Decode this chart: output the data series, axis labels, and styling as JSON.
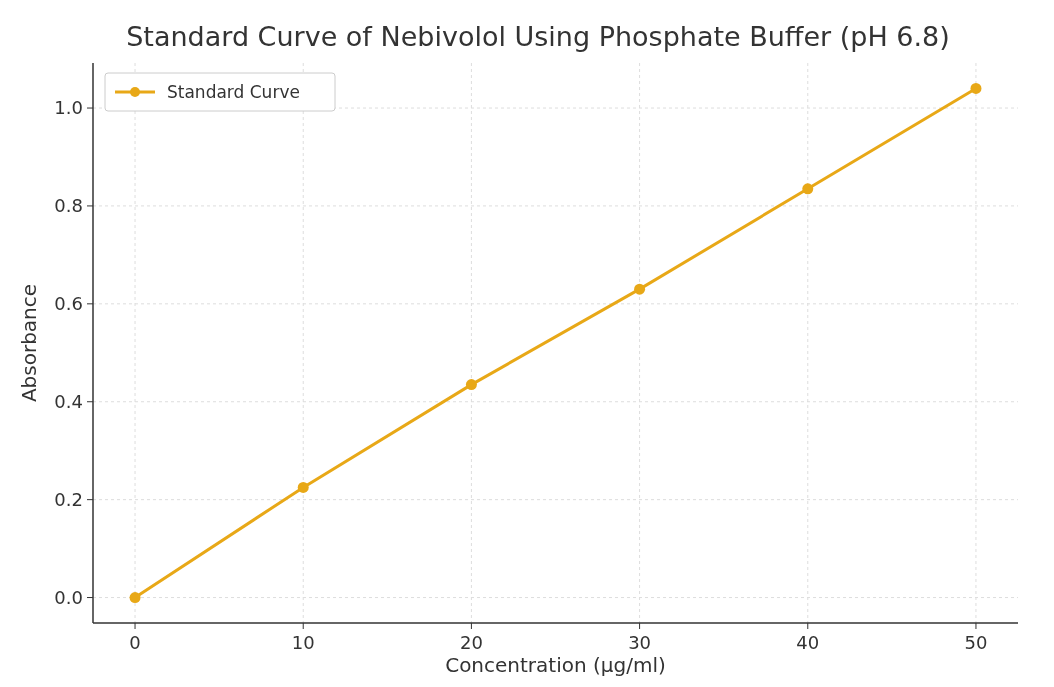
{
  "chart_data": {
    "type": "line",
    "title": "Standard Curve of Nebivolol Using Phosphate Buffer (pH 6.8)",
    "xlabel": "Concentration (µg/ml)",
    "ylabel": "Absorbance",
    "x": [
      0,
      10,
      20,
      30,
      40,
      50
    ],
    "series": [
      {
        "name": "Standard Curve",
        "color": "#e8a817",
        "values": [
          0,
          0.225,
          0.435,
          0.63,
          0.835,
          1.04
        ]
      }
    ],
    "xlim": [
      -2.5,
      52.5
    ],
    "ylim": [
      -0.052,
      1.092
    ],
    "xticks": [
      0,
      10,
      20,
      30,
      40,
      50
    ],
    "yticks": [
      {
        "value": 0,
        "label": "0.0"
      },
      {
        "value": 0.2,
        "label": "0.2"
      },
      {
        "value": 0.4,
        "label": "0.4"
      },
      {
        "value": 0.6,
        "label": "0.6"
      },
      {
        "value": 0.8,
        "label": "0.8"
      },
      {
        "value": 1,
        "label": "1.0"
      }
    ],
    "grid": true,
    "legend": "top left",
    "marker": "circle",
    "line_style": "solid"
  }
}
